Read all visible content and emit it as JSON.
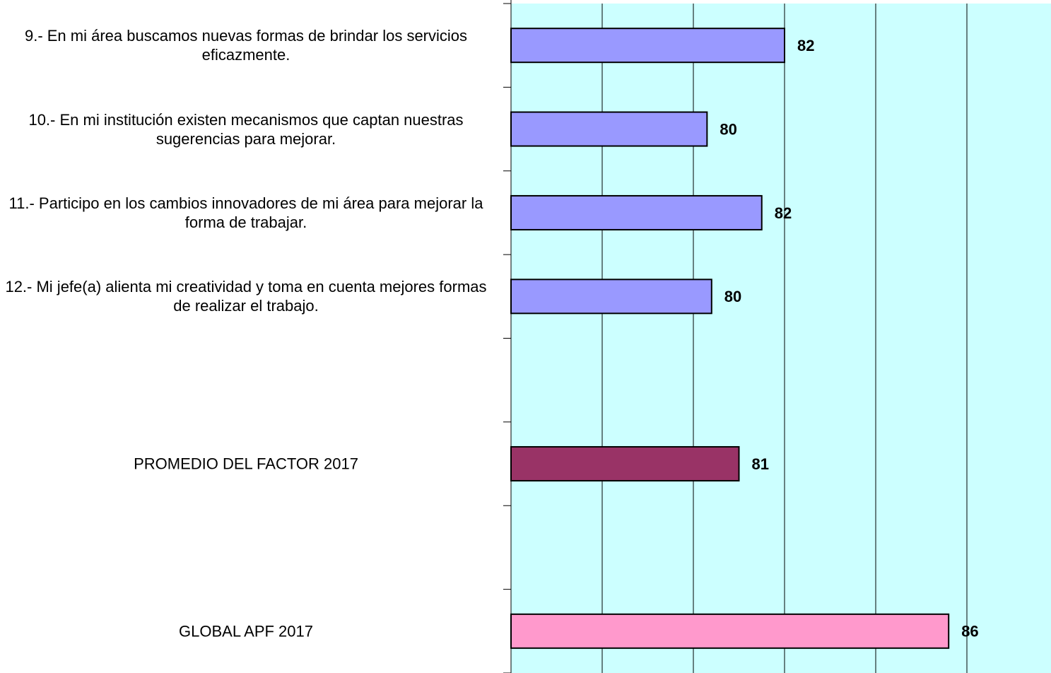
{
  "chart_data": {
    "type": "hbar",
    "categories": [
      "9.- En mi área buscamos nuevas formas de brindar los servicios eficazmente.",
      "10.- En mi institución existen mecanismos que captan nuestras sugerencias para mejorar.",
      "11.- Participo en los cambios innovadores de mi área para mejorar la forma de trabajar.",
      "12.- Mi jefe(a) alienta mi creatividad y toma en cuenta mejores formas de realizar el trabajo.",
      null,
      "PROMEDIO DEL FACTOR   2017",
      null,
      "GLOBAL APF   2017"
    ],
    "values": [
      82.0,
      80.3,
      81.5,
      80.4,
      null,
      81.0,
      null,
      85.6
    ],
    "value_labels": [
      "82",
      "80",
      "82",
      "80",
      null,
      "81",
      null,
      "86"
    ],
    "colors": [
      "#9999ff",
      "#9999ff",
      "#9999ff",
      "#9999ff",
      null,
      "#993366",
      null,
      "#ff99cc"
    ],
    "xlim": [
      76,
      88
    ],
    "xticks": [
      76,
      78,
      80,
      82,
      84,
      86,
      88
    ],
    "grid": true,
    "background": "#ccffff"
  }
}
